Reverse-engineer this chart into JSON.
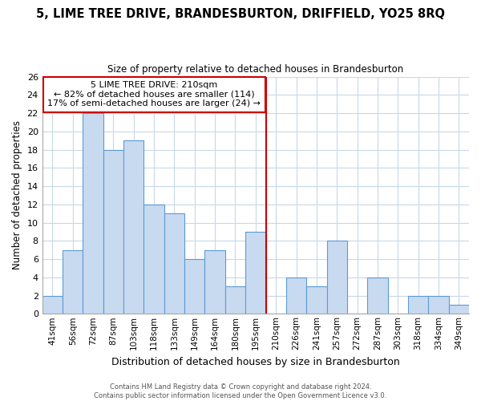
{
  "title": "5, LIME TREE DRIVE, BRANDESBURTON, DRIFFIELD, YO25 8RQ",
  "subtitle": "Size of property relative to detached houses in Brandesburton",
  "xlabel": "Distribution of detached houses by size in Brandesburton",
  "ylabel": "Number of detached properties",
  "bar_labels": [
    "41sqm",
    "56sqm",
    "72sqm",
    "87sqm",
    "103sqm",
    "118sqm",
    "133sqm",
    "149sqm",
    "164sqm",
    "180sqm",
    "195sqm",
    "210sqm",
    "226sqm",
    "241sqm",
    "257sqm",
    "272sqm",
    "287sqm",
    "303sqm",
    "318sqm",
    "334sqm",
    "349sqm"
  ],
  "bar_values": [
    2,
    7,
    22,
    18,
    19,
    12,
    11,
    6,
    7,
    3,
    9,
    0,
    4,
    3,
    8,
    0,
    4,
    0,
    2,
    2,
    1
  ],
  "bar_color": "#c8daf0",
  "bar_edge_color": "#5b9bd5",
  "ref_line_color": "#cc0000",
  "ylim_max": 26,
  "yticks": [
    0,
    2,
    4,
    6,
    8,
    10,
    12,
    14,
    16,
    18,
    20,
    22,
    24,
    26
  ],
  "annotation_title": "5 LIME TREE DRIVE: 210sqm",
  "annotation_line1": "← 82% of detached houses are smaller (114)",
  "annotation_line2": "17% of semi-detached houses are larger (24) →",
  "annotation_box_color": "#ffffff",
  "annotation_box_edge": "#cc0000",
  "footer_line1": "Contains HM Land Registry data © Crown copyright and database right 2024.",
  "footer_line2": "Contains public sector information licensed under the Open Government Licence v3.0.",
  "background_color": "#ffffff",
  "grid_color": "#c8d8e8"
}
